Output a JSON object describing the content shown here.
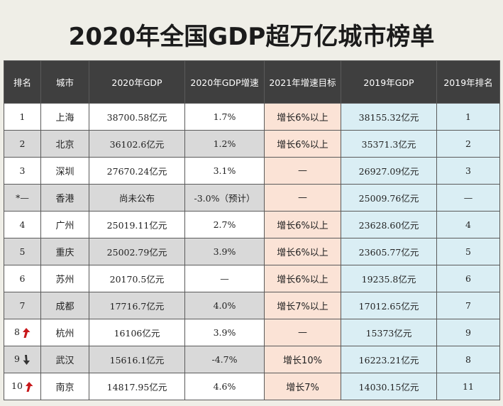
{
  "title": "2020年全国GDP超万亿城市榜单",
  "headers": [
    "排名",
    "城市",
    "2020年GDP",
    "2020年GDP增速",
    "2021年增速目标",
    "2019年GDP",
    "2019年排名"
  ],
  "colors": {
    "header_bg": "#3f3f3f",
    "goal_bg": "#fbe3d6",
    "gdp2019_bg": "#daeef4",
    "arrow_red": "#c8181b",
    "arrow_dark": "#333333"
  },
  "rows": [
    {
      "rank": "1",
      "city": "上海",
      "gdp2020": "38700.58亿元",
      "growth2020": "1.7%",
      "goal2021": "增长6%以上",
      "gdp2019": "38155.32亿元",
      "rank2019": "1",
      "trend": ""
    },
    {
      "rank": "2",
      "city": "北京",
      "gdp2020": "36102.6亿元",
      "growth2020": "1.2%",
      "goal2021": "增长6%以上",
      "gdp2019": "35371.3亿元",
      "rank2019": "2",
      "trend": ""
    },
    {
      "rank": "3",
      "city": "深圳",
      "gdp2020": "27670.24亿元",
      "growth2020": "3.1%",
      "goal2021": "—",
      "gdp2019": "26927.09亿元",
      "rank2019": "3",
      "trend": ""
    },
    {
      "rank": "*—",
      "city": "香港",
      "gdp2020": "尚未公布",
      "growth2020": "-3.0%（预计）",
      "goal2021": "—",
      "gdp2019": "25009.76亿元",
      "rank2019": "—",
      "trend": ""
    },
    {
      "rank": "4",
      "city": "广州",
      "gdp2020": "25019.11亿元",
      "growth2020": "2.7%",
      "goal2021": "增长6%以上",
      "gdp2019": "23628.60亿元",
      "rank2019": "4",
      "trend": ""
    },
    {
      "rank": "5",
      "city": "重庆",
      "gdp2020": "25002.79亿元",
      "growth2020": "3.9%",
      "goal2021": "增长6%以上",
      "gdp2019": "23605.77亿元",
      "rank2019": "5",
      "trend": ""
    },
    {
      "rank": "6",
      "city": "苏州",
      "gdp2020": "20170.5亿元",
      "growth2020": "—",
      "goal2021": "增长6%以上",
      "gdp2019": "19235.8亿元",
      "rank2019": "6",
      "trend": ""
    },
    {
      "rank": "7",
      "city": "成都",
      "gdp2020": "17716.7亿元",
      "growth2020": "4.0%",
      "goal2021": "增长7%以上",
      "gdp2019": "17012.65亿元",
      "rank2019": "7",
      "trend": ""
    },
    {
      "rank": "8",
      "city": "杭州",
      "gdp2020": "16106亿元",
      "growth2020": "3.9%",
      "goal2021": "—",
      "gdp2019": "15373亿元",
      "rank2019": "9",
      "trend": "up"
    },
    {
      "rank": "9",
      "city": "武汉",
      "gdp2020": "15616.1亿元",
      "growth2020": "-4.7%",
      "goal2021": "增长10%",
      "gdp2019": "16223.21亿元",
      "rank2019": "8",
      "trend": "down"
    },
    {
      "rank": "10",
      "city": "南京",
      "gdp2020": "14817.95亿元",
      "growth2020": "4.6%",
      "goal2021": "增长7%",
      "gdp2019": "14030.15亿元",
      "rank2019": "11",
      "trend": "up"
    }
  ]
}
